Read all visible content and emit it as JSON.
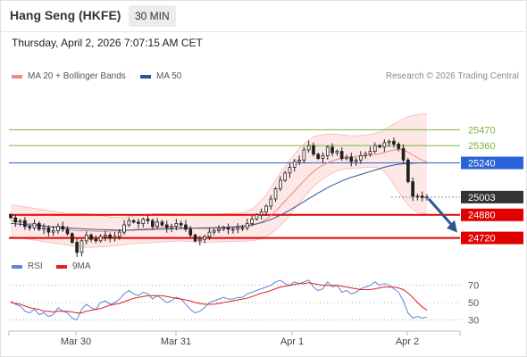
{
  "header": {
    "title": "Hang Seng (HKFE)",
    "timeframe": "30 MIN",
    "datetime": "Thursday, April 2, 2026 7:07:15 AM CET"
  },
  "legend": {
    "bb_label": "MA 20 + Bollinger Bands",
    "bb_color": "#f08a8a",
    "ma50_label": "MA 50",
    "ma50_color": "#2f5597",
    "copyright": "Research © 2026 Trading Central"
  },
  "rsi_legend": {
    "rsi_label": "RSI",
    "rsi_color": "#5b86d9",
    "ma_label": "9MA",
    "ma_color": "#e02020"
  },
  "chart_data": [
    {
      "type": "candlestick",
      "x_labels": [
        "Mar 30",
        "Mar 31",
        "Apr 1",
        "Apr 2"
      ],
      "ylim": [
        24600,
        25800
      ],
      "price_levels": [
        {
          "value": 25470,
          "label": "25470",
          "style": "resistance",
          "color": "#7cb342"
        },
        {
          "value": 25360,
          "label": "25360",
          "style": "resistance",
          "color": "#7cb342"
        },
        {
          "value": 25240,
          "label": "25240",
          "style": "pivot",
          "color": "#2a62d8"
        },
        {
          "value": 25003,
          "label": "25003",
          "style": "last-price",
          "color": "#333333"
        },
        {
          "value": 24880,
          "label": "24880",
          "style": "support",
          "color": "#e00000"
        },
        {
          "value": 24720,
          "label": "24720",
          "style": "support",
          "color": "#e00000"
        }
      ],
      "close_series": [
        24860,
        24830,
        24840,
        24800,
        24790,
        24820,
        24780,
        24790,
        24760,
        24770,
        24800,
        24780,
        24750,
        24690,
        24620,
        24700,
        24740,
        24710,
        24700,
        24730,
        24740,
        24720,
        24730,
        24760,
        24810,
        24840,
        24830,
        24820,
        24850,
        24840,
        24800,
        24830,
        24810,
        24790,
        24800,
        24820,
        24810,
        24780,
        24740,
        24700,
        24710,
        24730,
        24760,
        24770,
        24780,
        24790,
        24780,
        24780,
        24790,
        24790,
        24820,
        24850,
        24880,
        24900,
        24940,
        24990,
        25060,
        25120,
        25170,
        25210,
        25250,
        25260,
        25330,
        25360,
        25300,
        25270,
        25290,
        25350,
        25310,
        25320,
        25270,
        25280,
        25250,
        25260,
        25290,
        25300,
        25320,
        25360,
        25350,
        25380,
        25390,
        25370,
        25340,
        25260,
        25110,
        25010,
        25010,
        25000,
        25003
      ],
      "ma20_series": [
        24840,
        24835,
        24830,
        24825,
        24820,
        24815,
        24810,
        24805,
        24800,
        24795,
        24790,
        24785,
        24780,
        24775,
        24770,
        24770,
        24770,
        24768,
        24766,
        24766,
        24766,
        24767,
        24768,
        24770,
        24772,
        24775,
        24778,
        24780,
        24782,
        24785,
        24788,
        24790,
        24792,
        24794,
        24794,
        24794,
        24793,
        24792,
        24790,
        24788,
        24786,
        24785,
        24785,
        24785,
        24786,
        24788,
        24790,
        24792,
        24794,
        24797,
        24800,
        24805,
        24815,
        24830,
        24850,
        24875,
        24905,
        24940,
        24975,
        25010,
        25045,
        25080,
        25115,
        25150,
        25180,
        25205,
        25225,
        25240,
        25255,
        25265,
        25272,
        25278,
        25282,
        25285,
        25288,
        25291,
        25294,
        25298,
        25304,
        25312,
        25322,
        25330,
        25335,
        25330,
        25315,
        25295,
        25275,
        25260,
        25248
      ],
      "bb_upper_series": [
        24950,
        24945,
        24940,
        24935,
        24930,
        24925,
        24920,
        24915,
        24910,
        24905,
        24900,
        24895,
        24890,
        24890,
        24890,
        24890,
        24888,
        24885,
        24880,
        24875,
        24870,
        24865,
        24862,
        24862,
        24864,
        24868,
        24872,
        24876,
        24880,
        24884,
        24886,
        24888,
        24888,
        24888,
        24887,
        24886,
        24885,
        24884,
        24884,
        24885,
        24886,
        24886,
        24886,
        24886,
        24887,
        24888,
        24889,
        24890,
        24892,
        24896,
        24905,
        24920,
        24945,
        24980,
        25020,
        25070,
        25120,
        25170,
        25215,
        25260,
        25300,
        25340,
        25370,
        25400,
        25420,
        25430,
        25435,
        25440,
        25440,
        25438,
        25434,
        25430,
        25428,
        25428,
        25430,
        25433,
        25438,
        25445,
        25455,
        25470,
        25490,
        25510,
        25530,
        25545,
        25560,
        25570,
        25575,
        25580,
        25580
      ],
      "bb_lower_series": [
        24730,
        24725,
        24720,
        24715,
        24710,
        24705,
        24700,
        24695,
        24690,
        24685,
        24680,
        24675,
        24670,
        24665,
        24660,
        24655,
        24655,
        24655,
        24656,
        24658,
        24660,
        24663,
        24666,
        24670,
        24674,
        24678,
        24680,
        24682,
        24684,
        24686,
        24688,
        24690,
        24692,
        24694,
        24696,
        24698,
        24700,
        24698,
        24695,
        24692,
        24690,
        24690,
        24691,
        24692,
        24693,
        24694,
        24695,
        24696,
        24697,
        24698,
        24699,
        24700,
        24705,
        24715,
        24730,
        24750,
        24775,
        24805,
        24840,
        24880,
        24920,
        24960,
        25000,
        25040,
        25075,
        25105,
        25130,
        25150,
        25170,
        25185,
        25195,
        25200,
        25202,
        25204,
        25206,
        25208,
        25210,
        25212,
        25200,
        25180,
        25140,
        25090,
        25040,
        24990,
        24950,
        24920,
        24900,
        24890,
        24885
      ],
      "ma50_series": [
        24820,
        24818,
        24815,
        24812,
        24810,
        24808,
        24805,
        24803,
        24800,
        24798,
        24795,
        24793,
        24790,
        24788,
        24786,
        24784,
        24782,
        24780,
        24779,
        24778,
        24777,
        24776,
        24775,
        24774,
        24774,
        24774,
        24775,
        24776,
        24777,
        24778,
        24779,
        24780,
        24781,
        24782,
        24783,
        24784,
        24785,
        24786,
        24787,
        24788,
        24789,
        24790,
        24791,
        24792,
        24793,
        24794,
        24795,
        24797,
        24799,
        24802,
        24806,
        24811,
        24818,
        24826,
        24836,
        24848,
        24862,
        24878,
        24895,
        24913,
        24932,
        24952,
        24972,
        24992,
        25012,
        25032,
        25050,
        25068,
        25085,
        25100,
        25115,
        25128,
        25140,
        25150,
        25160,
        25170,
        25180,
        25190,
        25200,
        25210,
        25218,
        25225,
        25230,
        25234,
        25236,
        25238,
        25240,
        25240,
        25240
      ],
      "forecast_arrow": {
        "from": 25003,
        "to": 24720,
        "direction": "down"
      }
    },
    {
      "type": "line",
      "title": "RSI",
      "ylim": [
        20,
        80
      ],
      "y_ticks": [
        70,
        50,
        30
      ],
      "series": [
        {
          "name": "RSI",
          "color": "#5b86d9",
          "values": [
            52,
            48,
            46,
            40,
            38,
            42,
            36,
            38,
            34,
            36,
            44,
            40,
            38,
            32,
            30,
            42,
            48,
            44,
            42,
            50,
            52,
            48,
            50,
            54,
            60,
            64,
            60,
            58,
            62,
            60,
            54,
            58,
            54,
            50,
            52,
            56,
            54,
            48,
            42,
            38,
            40,
            44,
            50,
            52,
            54,
            56,
            54,
            54,
            56,
            56,
            60,
            62,
            64,
            66,
            68,
            70,
            74,
            76,
            72,
            70,
            74,
            72,
            74,
            76,
            68,
            64,
            66,
            74,
            68,
            70,
            62,
            64,
            60,
            62,
            66,
            68,
            70,
            74,
            70,
            72,
            70,
            66,
            62,
            52,
            38,
            32,
            34,
            32,
            33
          ]
        },
        {
          "name": "9MA",
          "color": "#e02020",
          "values": [
            50,
            49,
            48,
            46,
            44,
            43,
            42,
            40,
            40,
            39,
            40,
            40,
            40,
            39,
            38,
            38,
            40,
            41,
            42,
            43,
            45,
            47,
            48,
            49,
            51,
            53,
            55,
            56,
            57,
            58,
            58,
            58,
            58,
            57,
            56,
            55,
            54,
            53,
            52,
            50,
            49,
            48,
            48,
            48,
            49,
            50,
            51,
            52,
            53,
            54,
            55,
            57,
            59,
            61,
            62,
            64,
            66,
            68,
            69,
            70,
            71,
            72,
            72,
            73,
            72,
            71,
            70,
            70,
            70,
            70,
            69,
            68,
            67,
            66,
            65,
            65,
            65,
            66,
            67,
            68,
            68,
            68,
            67,
            65,
            61,
            56,
            50,
            45,
            41
          ]
        }
      ]
    }
  ]
}
